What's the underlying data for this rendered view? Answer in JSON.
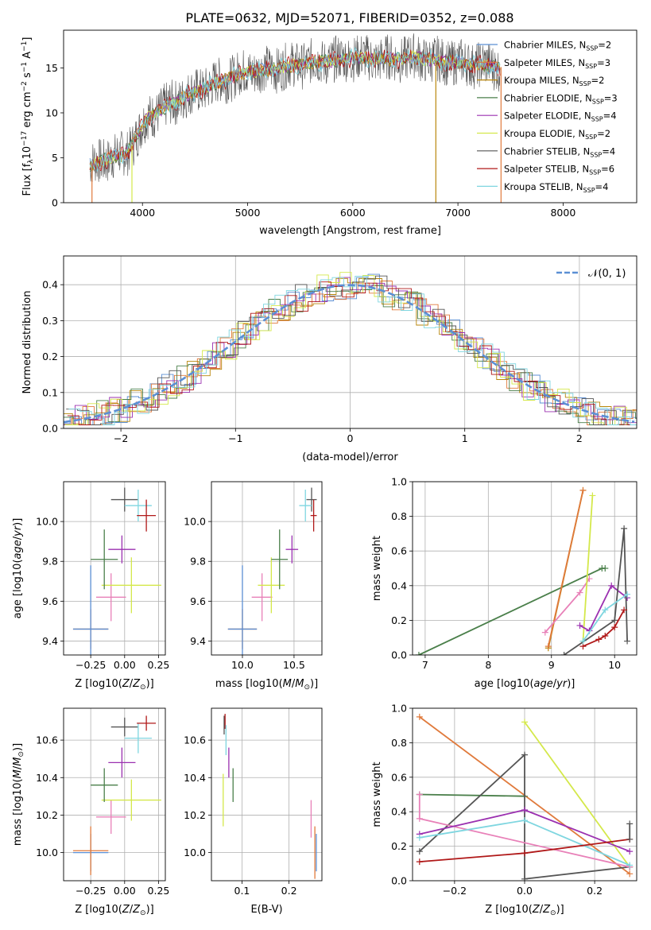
{
  "title": "PLATE=0632, MJD=52071, FIBERID=0352, z=0.088",
  "colors": {
    "chabrier_miles": "#5b8fd4",
    "salpeter_miles": "#e07a3c",
    "kroupa_miles": "#b8860b",
    "chabrier_elodie": "#4a7f4a",
    "salpeter_elodie": "#9b30b0",
    "kroupa_elodie": "#d4e84a",
    "chabrier_stelib": "#555555",
    "salpeter_stelib": "#b01818",
    "kroupa_stelib": "#7fd6e0",
    "pink": "#e880b8",
    "normal_curve": "#5b8fd4"
  },
  "chart_data": [
    {
      "id": "spectrum",
      "type": "line",
      "xlabel": "wavelength [Angstrom, rest frame]",
      "ylabel": "Flux [f",
      "ylabel_parts": [
        "Flux [f",
        "λ",
        "10",
        "−17",
        " erg cm",
        "−2",
        " s",
        "−1",
        " A",
        "−1",
        "]"
      ],
      "xlim": [
        3250,
        8700
      ],
      "ylim": [
        0,
        19.2
      ],
      "xticks": [
        4000,
        5000,
        6000,
        7000,
        8000
      ],
      "xtick_labels": [
        "4000",
        "5000",
        "6000",
        "7000",
        "8000"
      ],
      "yticks": [
        0,
        5,
        10,
        15
      ],
      "ytick_labels": [
        "0",
        "5",
        "10",
        "15"
      ],
      "grid": false,
      "legend_position": "right",
      "legend": [
        {
          "label": "Chabrier MILES, N",
          "sub": "SSP",
          "eq": "=2",
          "color_key": "chabrier_miles"
        },
        {
          "label": "Salpeter MILES, N",
          "sub": "SSP",
          "eq": "=3",
          "color_key": "salpeter_miles"
        },
        {
          "label": "Kroupa MILES, N",
          "sub": "SSP",
          "eq": "=2",
          "color_key": "kroupa_miles"
        },
        {
          "label": "Chabrier ELODIE, N",
          "sub": "SSP",
          "eq": "=3",
          "color_key": "chabrier_elodie"
        },
        {
          "label": "Salpeter ELODIE, N",
          "sub": "SSP",
          "eq": "=4",
          "color_key": "salpeter_elodie"
        },
        {
          "label": "Kroupa ELODIE, N",
          "sub": "SSP",
          "eq": "=2",
          "color_key": "kroupa_elodie"
        },
        {
          "label": "Chabrier STELIB, N",
          "sub": "SSP",
          "eq": "=4",
          "color_key": "chabrier_stelib"
        },
        {
          "label": "Salpeter STELIB, N",
          "sub": "SSP",
          "eq": "=6",
          "color_key": "salpeter_stelib"
        },
        {
          "label": "Kroupa STELIB, N",
          "sub": "SSP",
          "eq": "=4",
          "color_key": "kroupa_stelib"
        }
      ],
      "continuum": [
        [
          3500,
          4.2
        ],
        [
          3700,
          5.0
        ],
        [
          3850,
          5.5
        ],
        [
          3950,
          7.5
        ],
        [
          4050,
          9.5
        ],
        [
          4200,
          10.5
        ],
        [
          4400,
          11.8
        ],
        [
          4600,
          12.8
        ],
        [
          4800,
          13.8
        ],
        [
          5000,
          14.6
        ],
        [
          5200,
          14.8
        ],
        [
          5400,
          15.2
        ],
        [
          5600,
          15.6
        ],
        [
          5800,
          15.8
        ],
        [
          6000,
          16.2
        ],
        [
          6200,
          16.0
        ],
        [
          6400,
          16.0
        ],
        [
          6600,
          16.2
        ],
        [
          6800,
          15.8
        ],
        [
          7000,
          15.6
        ],
        [
          7200,
          15.4
        ],
        [
          7400,
          15.1
        ]
      ],
      "spikes_down": [
        {
          "x": 3520,
          "y": 0,
          "color_key": "salpeter_miles"
        },
        {
          "x": 3900,
          "y": 0,
          "color_key": "kroupa_elodie"
        },
        {
          "x": 6790,
          "y": 0,
          "color_key": "kroupa_miles"
        },
        {
          "x": 7410,
          "y": 0,
          "color_key": "salpeter_miles"
        }
      ]
    },
    {
      "id": "residuals",
      "type": "step",
      "xlabel": "(data-model)/error",
      "ylabel": "Normed distribution",
      "xlim": [
        -2.5,
        2.5
      ],
      "ylim": [
        0,
        0.48
      ],
      "xticks": [
        -2,
        -1,
        0,
        1,
        2
      ],
      "xtick_labels": [
        "−2",
        "−1",
        "0",
        "1",
        "2"
      ],
      "yticks": [
        0.0,
        0.1,
        0.2,
        0.3,
        0.4
      ],
      "ytick_labels": [
        "0.0",
        "0.1",
        "0.2",
        "0.3",
        "0.4"
      ],
      "grid": true,
      "legend_position": "top-right",
      "legend_label": "𝒩(0, 1)",
      "normal": {
        "mean": 0,
        "sigma": 1
      }
    },
    {
      "id": "age_vs_Z",
      "type": "errorbar",
      "xlabel": "Z [log10(Z/Z⊙)]",
      "ylabel": "age  [log10(age/yr)]",
      "xlim": [
        -0.45,
        0.3
      ],
      "ylim": [
        9.33,
        10.2
      ],
      "xticks": [
        -0.25,
        0.0,
        0.25
      ],
      "xtick_labels": [
        "−0.25",
        "0.00",
        "0.25"
      ],
      "yticks": [
        9.4,
        9.6,
        9.8,
        10.0
      ],
      "ytick_labels": [
        "9.4",
        "9.6",
        "9.8",
        "10.0"
      ],
      "grid": true,
      "points": [
        {
          "x": -0.25,
          "y": 9.46,
          "xerr": 0.13,
          "yerr": 0.1,
          "color_key": "salpeter_miles"
        },
        {
          "x": -0.25,
          "y": 9.46,
          "xerr": 0.13,
          "yerr": 0.32,
          "color_key": "chabrier_miles"
        },
        {
          "x": -0.1,
          "y": 9.62,
          "xerr": 0.11,
          "yerr": 0.12,
          "color_key": "pink"
        },
        {
          "x": 0.05,
          "y": 9.68,
          "xerr": 0.22,
          "yerr": 0.14,
          "color_key": "kroupa_elodie"
        },
        {
          "x": -0.15,
          "y": 9.81,
          "xerr": 0.1,
          "yerr": 0.15,
          "color_key": "chabrier_elodie"
        },
        {
          "x": -0.02,
          "y": 9.86,
          "xerr": 0.1,
          "yerr": 0.07,
          "color_key": "salpeter_elodie"
        },
        {
          "x": 0.0,
          "y": 10.11,
          "xerr": 0.1,
          "yerr": 0.06,
          "color_key": "chabrier_stelib"
        },
        {
          "x": 0.1,
          "y": 10.08,
          "xerr": 0.1,
          "yerr": 0.08,
          "color_key": "kroupa_stelib"
        },
        {
          "x": 0.16,
          "y": 10.03,
          "xerr": 0.07,
          "yerr": 0.08,
          "color_key": "salpeter_stelib"
        }
      ]
    },
    {
      "id": "age_vs_mass",
      "type": "errorbar",
      "xlabel": "mass [log10(M/M⊙)]",
      "xlim": [
        9.7,
        10.77
      ],
      "ylim": [
        9.33,
        10.2
      ],
      "xticks": [
        10.0,
        10.5
      ],
      "xtick_labels": [
        "10.0",
        "10.5"
      ],
      "yticks": [
        9.4,
        9.6,
        9.8,
        10.0
      ],
      "ytick_labels": [
        "9.4",
        "9.6",
        "9.8",
        "10.0"
      ],
      "grid": true,
      "points": [
        {
          "x": 10.0,
          "y": 9.46,
          "xerr": 0.14,
          "yerr": 0.1,
          "color_key": "salpeter_miles"
        },
        {
          "x": 10.0,
          "y": 9.46,
          "xerr": 0.14,
          "yerr": 0.32,
          "color_key": "chabrier_miles"
        },
        {
          "x": 10.19,
          "y": 9.62,
          "xerr": 0.1,
          "yerr": 0.12,
          "color_key": "pink"
        },
        {
          "x": 10.28,
          "y": 9.68,
          "xerr": 0.13,
          "yerr": 0.14,
          "color_key": "kroupa_elodie"
        },
        {
          "x": 10.36,
          "y": 9.81,
          "xerr": 0.08,
          "yerr": 0.15,
          "color_key": "chabrier_elodie"
        },
        {
          "x": 10.48,
          "y": 9.86,
          "xerr": 0.06,
          "yerr": 0.07,
          "color_key": "salpeter_elodie"
        },
        {
          "x": 10.67,
          "y": 10.11,
          "xerr": 0.05,
          "yerr": 0.06,
          "color_key": "chabrier_stelib"
        },
        {
          "x": 10.61,
          "y": 10.08,
          "xerr": 0.06,
          "yerr": 0.08,
          "color_key": "kroupa_stelib"
        },
        {
          "x": 10.69,
          "y": 10.03,
          "xerr": 0.03,
          "yerr": 0.08,
          "color_key": "salpeter_stelib"
        }
      ]
    },
    {
      "id": "weight_vs_age",
      "type": "line",
      "xlabel": "age  [log10(age/yr)]",
      "ylabel": "mass weight",
      "xlim": [
        6.8,
        10.35
      ],
      "ylim": [
        0,
        1
      ],
      "xticks": [
        7,
        8,
        9,
        10
      ],
      "xtick_labels": [
        "7",
        "8",
        "9",
        "10"
      ],
      "yticks": [
        0.0,
        0.2,
        0.4,
        0.6,
        0.8,
        1.0
      ],
      "ytick_labels": [
        "0.0",
        "0.2",
        "0.4",
        "0.6",
        "0.8",
        "1.0"
      ],
      "grid": true,
      "series": [
        {
          "color_key": "chabrier_elodie",
          "points": [
            [
              6.9,
              0.0
            ],
            [
              9.8,
              0.5
            ],
            [
              9.85,
              0.5
            ]
          ]
        },
        {
          "color_key": "kroupa_miles",
          "points": [
            [
              8.95,
              0.04
            ],
            [
              9.5,
              0.95
            ]
          ]
        },
        {
          "color_key": "salpeter_miles",
          "points": [
            [
              8.95,
              0.05
            ],
            [
              9.5,
              0.95
            ]
          ]
        },
        {
          "color_key": "pink",
          "points": [
            [
              8.9,
              0.13
            ],
            [
              9.45,
              0.36
            ],
            [
              9.6,
              0.44
            ]
          ]
        },
        {
          "color_key": "kroupa_elodie",
          "points": [
            [
              9.5,
              0.08
            ],
            [
              9.65,
              0.92
            ]
          ]
        },
        {
          "color_key": "salpeter_elodie",
          "points": [
            [
              9.45,
              0.17
            ],
            [
              9.6,
              0.14
            ],
            [
              9.95,
              0.4
            ],
            [
              10.2,
              0.33
            ]
          ]
        },
        {
          "color_key": "chabrier_stelib",
          "points": [
            [
              9.2,
              0.0
            ],
            [
              10.0,
              0.2
            ],
            [
              10.15,
              0.73
            ],
            [
              10.2,
              0.08
            ]
          ]
        },
        {
          "color_key": "salpeter_stelib",
          "points": [
            [
              9.5,
              0.05
            ],
            [
              9.75,
              0.09
            ],
            [
              9.85,
              0.11
            ],
            [
              10.0,
              0.16
            ],
            [
              10.15,
              0.26
            ]
          ]
        },
        {
          "color_key": "kroupa_stelib",
          "points": [
            [
              9.5,
              0.08
            ],
            [
              9.85,
              0.26
            ],
            [
              10.2,
              0.35
            ]
          ]
        }
      ]
    },
    {
      "id": "mass_vs_Z",
      "type": "errorbar",
      "xlabel": "Z [log10(Z/Z⊙)]",
      "ylabel": "mass [log10(M/M⊙)]",
      "xlim": [
        -0.45,
        0.3
      ],
      "ylim": [
        9.85,
        10.77
      ],
      "xticks": [
        -0.25,
        0.0,
        0.25
      ],
      "xtick_labels": [
        "−0.25",
        "0.00",
        "0.25"
      ],
      "yticks": [
        10.0,
        10.2,
        10.4,
        10.6
      ],
      "ytick_labels": [
        "10.0",
        "10.2",
        "10.4",
        "10.6"
      ],
      "grid": true,
      "points": [
        {
          "x": -0.25,
          "y": 10.0,
          "xerr": 0.13,
          "yerr": 0.1,
          "color_key": "chabrier_miles"
        },
        {
          "x": -0.25,
          "y": 10.01,
          "xerr": 0.13,
          "yerr": 0.13,
          "color_key": "salpeter_miles"
        },
        {
          "x": -0.1,
          "y": 10.19,
          "xerr": 0.11,
          "yerr": 0.09,
          "color_key": "pink"
        },
        {
          "x": 0.05,
          "y": 10.28,
          "xerr": 0.22,
          "yerr": 0.11,
          "color_key": "kroupa_elodie"
        },
        {
          "x": -0.15,
          "y": 10.36,
          "xerr": 0.1,
          "yerr": 0.09,
          "color_key": "chabrier_elodie"
        },
        {
          "x": -0.02,
          "y": 10.48,
          "xerr": 0.1,
          "yerr": 0.08,
          "color_key": "salpeter_elodie"
        },
        {
          "x": 0.0,
          "y": 10.67,
          "xerr": 0.1,
          "yerr": 0.05,
          "color_key": "chabrier_stelib"
        },
        {
          "x": 0.1,
          "y": 10.61,
          "xerr": 0.1,
          "yerr": 0.08,
          "color_key": "kroupa_stelib"
        },
        {
          "x": 0.16,
          "y": 10.69,
          "xerr": 0.07,
          "yerr": 0.04,
          "color_key": "salpeter_stelib"
        }
      ]
    },
    {
      "id": "mass_vs_ebv",
      "type": "errorbar",
      "xlabel": "E(B-V)",
      "xlim": [
        0.035,
        0.27
      ],
      "ylim": [
        9.85,
        10.77
      ],
      "xticks": [
        0.1,
        0.2
      ],
      "xtick_labels": [
        "0.1",
        "0.2"
      ],
      "yticks": [
        10.0,
        10.2,
        10.4,
        10.6
      ],
      "ytick_labels": [
        "10.0",
        "10.2",
        "10.4",
        "10.6"
      ],
      "grid": true,
      "points": [
        {
          "x": 0.062,
          "y": 10.68,
          "xerr": 0.0,
          "yerr": 0.05,
          "color_key": "chabrier_stelib"
        },
        {
          "x": 0.064,
          "y": 10.7,
          "xerr": 0.0,
          "yerr": 0.04,
          "color_key": "salpeter_stelib"
        },
        {
          "x": 0.066,
          "y": 10.6,
          "xerr": 0.0,
          "yerr": 0.08,
          "color_key": "kroupa_stelib"
        },
        {
          "x": 0.06,
          "y": 10.28,
          "xerr": 0.0,
          "yerr": 0.14,
          "color_key": "kroupa_elodie"
        },
        {
          "x": 0.072,
          "y": 10.48,
          "xerr": 0.0,
          "yerr": 0.08,
          "color_key": "salpeter_elodie"
        },
        {
          "x": 0.081,
          "y": 10.36,
          "xerr": 0.0,
          "yerr": 0.09,
          "color_key": "chabrier_elodie"
        },
        {
          "x": 0.247,
          "y": 10.18,
          "xerr": 0.0,
          "yerr": 0.1,
          "color_key": "pink"
        },
        {
          "x": 0.255,
          "y": 10.0,
          "xerr": 0.0,
          "yerr": 0.14,
          "color_key": "salpeter_miles"
        },
        {
          "x": 0.258,
          "y": 10.0,
          "xerr": 0.0,
          "yerr": 0.1,
          "color_key": "chabrier_miles"
        }
      ]
    },
    {
      "id": "weight_vs_Z",
      "type": "line",
      "xlabel": "Z [log10(Z/Z⊙)]",
      "ylabel": "mass weight",
      "xlim": [
        -0.32,
        0.32
      ],
      "ylim": [
        0,
        1
      ],
      "xticks": [
        -0.2,
        0.0,
        0.2
      ],
      "xtick_labels": [
        "−0.2",
        "0.0",
        "0.2"
      ],
      "yticks": [
        0.0,
        0.2,
        0.4,
        0.6,
        0.8,
        1.0
      ],
      "ytick_labels": [
        "0.0",
        "0.2",
        "0.4",
        "0.6",
        "0.8",
        "1.0"
      ],
      "grid": true,
      "series": [
        {
          "color_key": "salpeter_miles",
          "points": [
            [
              -0.3,
              0.95
            ],
            [
              0.3,
              0.04
            ]
          ]
        },
        {
          "color_key": "kroupa_elodie",
          "points": [
            [
              0.0,
              0.92
            ],
            [
              0.3,
              0.08
            ]
          ]
        },
        {
          "color_key": "chabrier_elodie",
          "points": [
            [
              -0.3,
              0.5
            ],
            [
              0.0,
              0.49
            ]
          ]
        },
        {
          "color_key": "chabrier_stelib",
          "points": [
            [
              -0.3,
              0.17
            ],
            [
              0.0,
              0.73
            ],
            [
              0.0,
              0.01
            ],
            [
              0.3,
              0.08
            ]
          ]
        },
        {
          "color_key": "pink",
          "points": [
            [
              -0.3,
              0.5
            ],
            [
              -0.3,
              0.36
            ],
            [
              0.3,
              0.08
            ]
          ]
        },
        {
          "color_key": "salpeter_elodie",
          "points": [
            [
              -0.3,
              0.27
            ],
            [
              0.0,
              0.41
            ],
            [
              0.3,
              0.17
            ]
          ]
        },
        {
          "color_key": "kroupa_stelib",
          "points": [
            [
              -0.3,
              0.25
            ],
            [
              0.0,
              0.35
            ],
            [
              0.3,
              0.09
            ]
          ]
        },
        {
          "color_key": "salpeter_stelib",
          "points": [
            [
              -0.3,
              0.11
            ],
            [
              0.0,
              0.16
            ],
            [
              0.3,
              0.24
            ]
          ]
        },
        {
          "color_key": "chabrier_stelib",
          "points": [
            [
              0.3,
              0.33
            ],
            [
              0.3,
              0.24
            ]
          ]
        }
      ]
    }
  ]
}
